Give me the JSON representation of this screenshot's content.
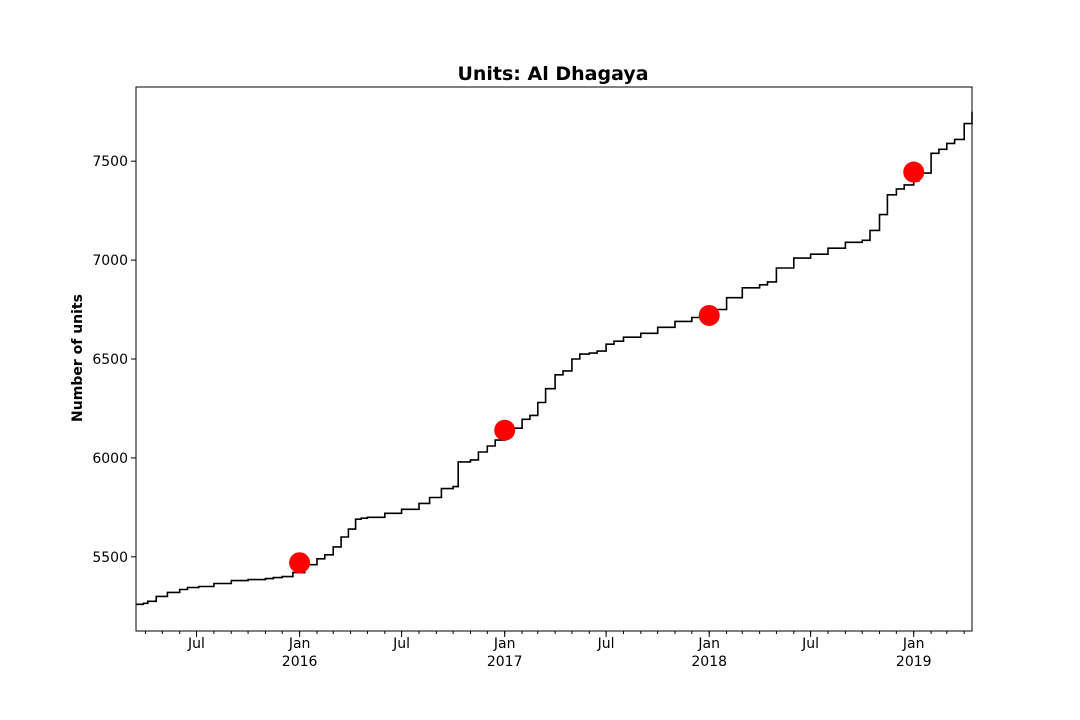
{
  "chart_data": {
    "type": "line",
    "title": "Units: Al Dhagaya",
    "xlabel": "",
    "ylabel": "Number of units",
    "xlim": [
      "2015-03-15",
      "2019-04-15"
    ],
    "ylim": [
      5125,
      7875
    ],
    "grid": false,
    "legend": "none",
    "colors": {
      "line": "#000000",
      "markers": "#ff0000"
    },
    "y_ticks": [
      5500,
      6000,
      6500,
      7000,
      7500
    ],
    "x_ticks_major": [
      {
        "date": "2015-07-01",
        "label": "Jul",
        "sublabel": ""
      },
      {
        "date": "2016-01-01",
        "label": "Jan",
        "sublabel": "2016"
      },
      {
        "date": "2016-07-01",
        "label": "Jul",
        "sublabel": ""
      },
      {
        "date": "2017-01-01",
        "label": "Jan",
        "sublabel": "2017"
      },
      {
        "date": "2017-07-01",
        "label": "Jul",
        "sublabel": ""
      },
      {
        "date": "2018-01-01",
        "label": "Jan",
        "sublabel": "2018"
      },
      {
        "date": "2018-07-01",
        "label": "Jul",
        "sublabel": ""
      },
      {
        "date": "2019-01-01",
        "label": "Jan",
        "sublabel": "2019"
      }
    ],
    "series": [
      {
        "x": [
          "2015-03-15",
          "2015-03-28",
          "2015-04-05",
          "2015-04-20",
          "2015-05-10",
          "2015-06-01",
          "2015-06-15",
          "2015-07-05",
          "2015-08-01",
          "2015-09-01",
          "2015-10-01",
          "2015-11-01",
          "2015-11-15",
          "2015-12-01",
          "2015-12-20",
          "2016-01-10",
          "2016-02-01",
          "2016-02-15",
          "2016-03-01",
          "2016-03-15",
          "2016-03-28",
          "2016-04-10",
          "2016-04-20",
          "2016-05-01",
          "2016-06-01",
          "2016-07-01",
          "2016-08-01",
          "2016-08-20",
          "2016-09-10",
          "2016-10-01",
          "2016-10-10",
          "2016-11-01",
          "2016-11-15",
          "2016-12-01",
          "2016-12-15",
          "2017-01-01",
          "2017-01-15",
          "2017-02-01",
          "2017-02-15",
          "2017-03-01",
          "2017-03-15",
          "2017-04-01",
          "2017-04-15",
          "2017-05-01",
          "2017-05-15",
          "2017-06-01",
          "2017-06-15",
          "2017-07-01",
          "2017-07-15",
          "2017-08-01",
          "2017-09-01",
          "2017-10-01",
          "2017-11-01",
          "2017-12-01",
          "2017-12-20",
          "2018-01-01",
          "2018-01-10",
          "2018-02-01",
          "2018-03-01",
          "2018-04-01",
          "2018-04-15",
          "2018-05-01",
          "2018-06-01",
          "2018-07-01",
          "2018-08-01",
          "2018-09-01",
          "2018-10-01",
          "2018-10-15",
          "2018-11-01",
          "2018-11-15",
          "2018-12-01",
          "2018-12-15",
          "2019-01-01",
          "2019-01-10",
          "2019-02-01",
          "2019-02-15",
          "2019-03-01",
          "2019-03-15",
          "2019-04-01",
          "2019-04-15"
        ],
        "y": [
          5260,
          5265,
          5275,
          5300,
          5320,
          5335,
          5345,
          5350,
          5365,
          5380,
          5385,
          5390,
          5395,
          5400,
          5420,
          5460,
          5490,
          5510,
          5550,
          5600,
          5640,
          5690,
          5695,
          5700,
          5720,
          5740,
          5770,
          5800,
          5845,
          5855,
          5980,
          5990,
          6030,
          6060,
          6090,
          6130,
          6150,
          6195,
          6215,
          6280,
          6350,
          6420,
          6440,
          6500,
          6525,
          6530,
          6540,
          6575,
          6590,
          6610,
          6630,
          6660,
          6690,
          6710,
          6720,
          6725,
          6750,
          6810,
          6860,
          6875,
          6890,
          6960,
          7010,
          7030,
          7060,
          7090,
          7100,
          7150,
          7230,
          7330,
          7360,
          7380,
          7400,
          7440,
          7540,
          7560,
          7590,
          7610,
          7690,
          7750
        ]
      }
    ],
    "markers": [
      {
        "x": "2016-01-01",
        "y": 5470
      },
      {
        "x": "2017-01-01",
        "y": 6140
      },
      {
        "x": "2018-01-01",
        "y": 6720
      },
      {
        "x": "2019-01-01",
        "y": 7445
      }
    ]
  }
}
